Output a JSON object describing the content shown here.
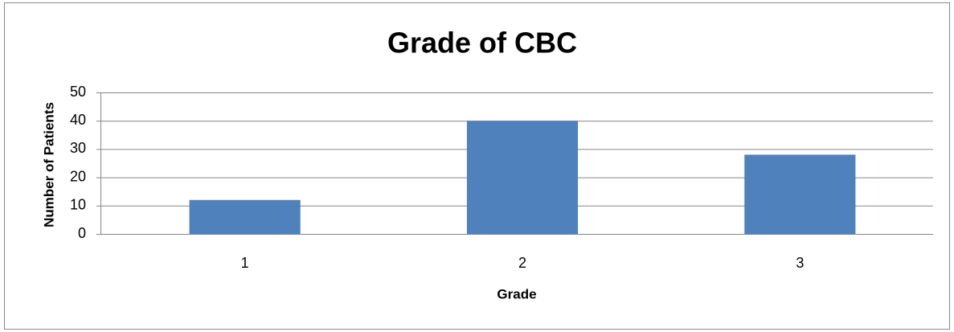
{
  "chart_data": {
    "type": "bar",
    "title": "Grade of CBC",
    "x_label": "Grade",
    "y_label": "Number of Patients",
    "categories": [
      "1",
      "2",
      "3"
    ],
    "values": [
      12,
      40,
      28
    ],
    "color": "#4f81bd",
    "ylim": [
      0,
      50
    ],
    "yticks": [
      0,
      10,
      20,
      30,
      40,
      50
    ],
    "grid": true
  }
}
